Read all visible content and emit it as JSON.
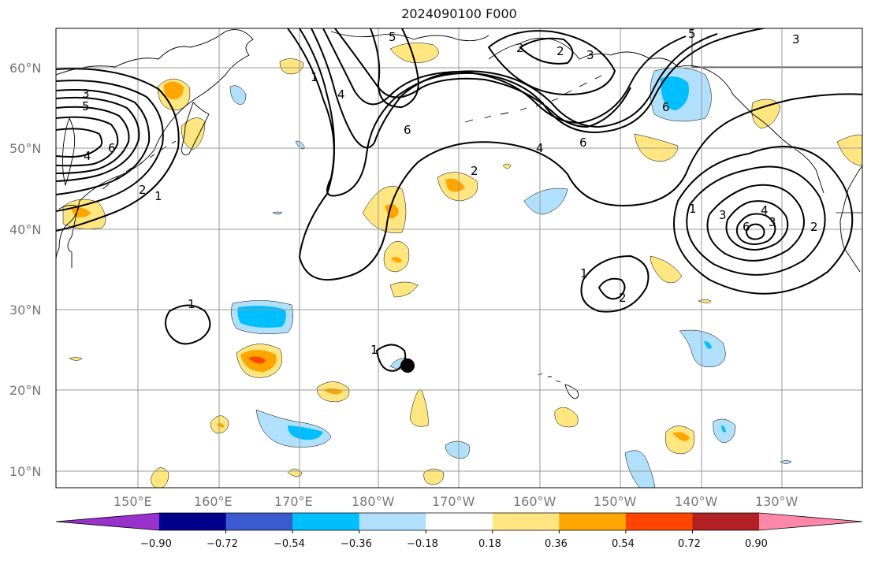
{
  "title": "2024090100 F000",
  "map": {
    "lat_labels": [
      "60°N",
      "50°N",
      "40°N",
      "30°N",
      "20°N",
      "10°N"
    ],
    "lon_labels": [
      "150°E",
      "160°E",
      "170°E",
      "180°W",
      "170°W",
      "160°W",
      "150°W",
      "140°W",
      "130°W"
    ],
    "marker": "storm-center-dot"
  },
  "colorbar": {
    "ticks": [
      "−0.90",
      "−0.72",
      "−0.54",
      "−0.36",
      "−0.18",
      "0.18",
      "0.36",
      "0.54",
      "0.72",
      "0.90"
    ],
    "colors": [
      "#9932cc",
      "#00008b",
      "#3a5bcf",
      "#00bfff",
      "#b0e0fb",
      "#ffffff",
      "#ffe680",
      "#ffa500",
      "#ff4500",
      "#b22222",
      "#ff88aa"
    ]
  },
  "colors": {
    "contour": "#000000",
    "grid": "#999999",
    "coast": "#000000"
  }
}
